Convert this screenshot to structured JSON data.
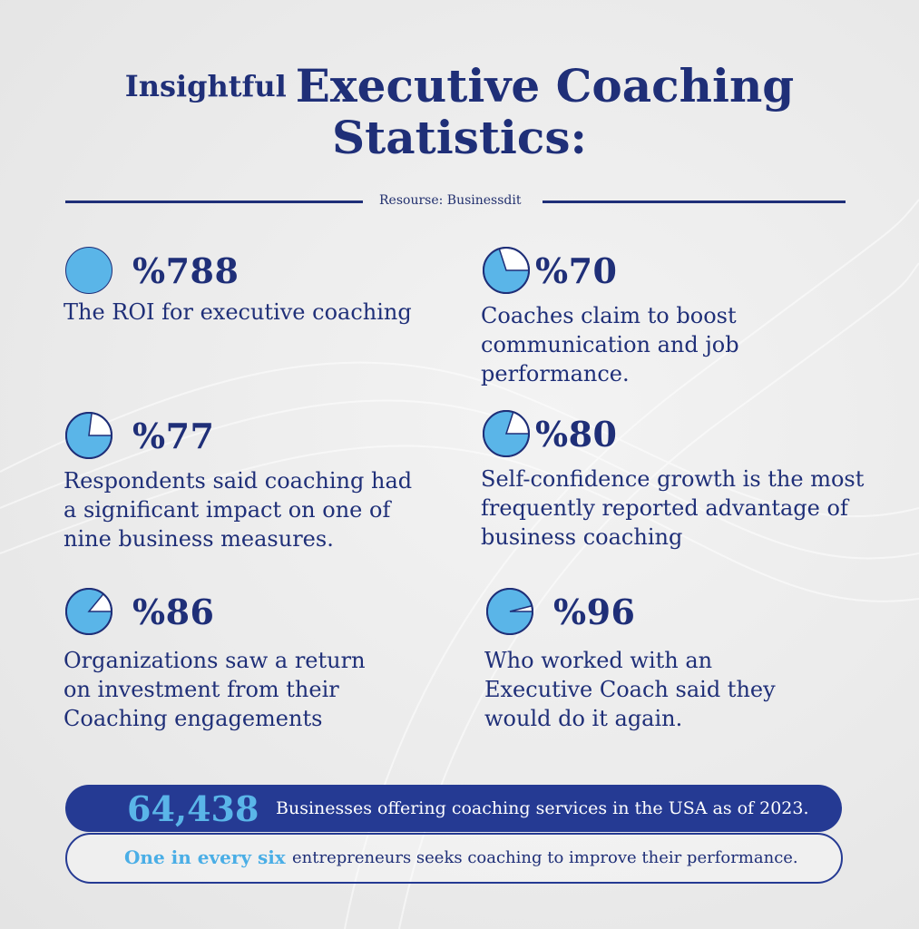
{
  "header": {
    "title_small": "Insightful",
    "title_big": "Executive Coaching",
    "title_line2": "Statistics:",
    "source": "Resourse: Businessdit"
  },
  "stats": [
    {
      "percent": "%788",
      "fraction": 1.0,
      "description": [
        "The ROI for executive coaching"
      ]
    },
    {
      "percent": "%70",
      "fraction": 0.7,
      "description": [
        "Coaches claim to boost",
        "communication and job",
        "performance."
      ]
    },
    {
      "percent": "%77",
      "fraction": 0.77,
      "description": [
        "Respondents said coaching had",
        "a significant impact on one of",
        "nine business measures."
      ]
    },
    {
      "percent": "%80",
      "fraction": 0.8,
      "description": [
        "Self-confidence growth is the most",
        "frequently reported advantage of",
        "business coaching"
      ]
    },
    {
      "percent": "%86",
      "fraction": 0.86,
      "description": [
        "Organizations saw a return",
        "on investment from their",
        "Coaching engagements"
      ]
    },
    {
      "percent": "%96",
      "fraction": 0.96,
      "description": [
        "Who worked with an",
        "Executive Coach said they",
        "would do it again."
      ]
    }
  ],
  "banner_primary": {
    "number": "64,438",
    "text": "Businesses offering coaching services in the USA as of 2023."
  },
  "banner_secondary": {
    "highlight": "One in every six",
    "text": "entrepreneurs seeks coaching to improve their performance."
  },
  "colors": {
    "navy": "#1f2f78",
    "pie_fill": "#5ab5e8",
    "pie_empty": "#ffffff",
    "banner": "#253a93"
  }
}
